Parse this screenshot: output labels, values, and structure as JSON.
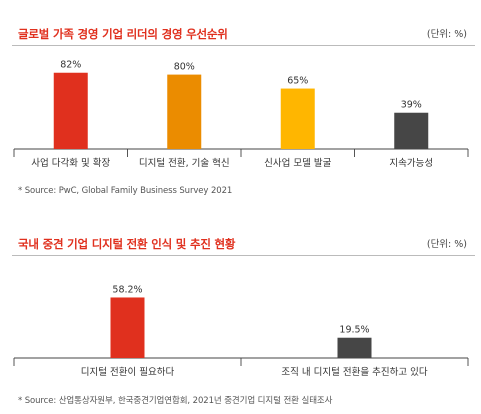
{
  "charts": [
    {
      "title": "글로벌 가족 경영 기업 리더의 경영 우선순위",
      "unit": "(단위: %)",
      "source": "* Source: PwC, Global Family Business Survey 2021",
      "chart_data": {
        "type": "bar",
        "categories": [
          "사업 다각화 및 확장",
          "디지털 전환, 기술 혁신",
          "신사업 모델 발굴",
          "지속가능성"
        ],
        "values": [
          82,
          80,
          65,
          39
        ],
        "value_labels": [
          "82%",
          "80%",
          "65%",
          "39%"
        ],
        "colors": [
          "#e0301e",
          "#eb8c00",
          "#ffb600",
          "#464646"
        ],
        "ylim": [
          0,
          100
        ],
        "grid": false
      }
    },
    {
      "title": "국내 중견 기업 디지털 전환 인식 및 추진 현황",
      "unit": "(단위: %)",
      "source": "* Source: 산업통상자원부, 한국중견기업연합회, 2021년 중견기업 디지털 전환 실태조사",
      "chart_data": {
        "type": "bar",
        "categories": [
          "디지털 전환이 필요하다",
          "조직 내 디지털 전환을 추진하고 있다"
        ],
        "values": [
          58.2,
          19.5
        ],
        "value_labels": [
          "58.2%",
          "19.5%"
        ],
        "colors": [
          "#e0301e",
          "#464646"
        ],
        "ylim": [
          0,
          100
        ],
        "grid": false
      }
    }
  ]
}
